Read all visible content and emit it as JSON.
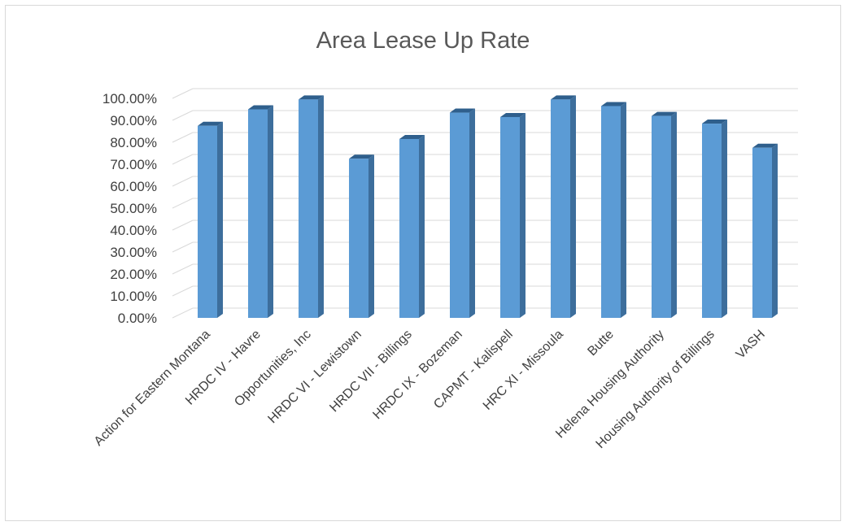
{
  "chart_data": {
    "type": "bar",
    "title": "Area Lease Up Rate",
    "categories": [
      "Action for Eastern Montana",
      "HRDC IV - Havre",
      "Opportunities, Inc",
      "HRDC VI - Lewistown",
      "HRDC VII - Billings",
      "HRDC IX - Bozeman",
      "CAPMT - Kalispell",
      "HRC XI - Missoula",
      "Butte",
      "Helena Housing Authority",
      "Housing Authority of Billings",
      "VASH"
    ],
    "series": [
      {
        "values": [
          0.875,
          0.95,
          0.995,
          0.725,
          0.815,
          0.935,
          0.915,
          0.995,
          0.965,
          0.92,
          0.885,
          0.775
        ]
      }
    ],
    "ylim": [
      0,
      1
    ],
    "yticks": [
      "0.00%",
      "10.00%",
      "20.00%",
      "30.00%",
      "40.00%",
      "50.00%",
      "60.00%",
      "70.00%",
      "80.00%",
      "90.00%",
      "100.00%"
    ],
    "grid": true,
    "style": "3d-column",
    "colors": {
      "front": "#5b9bd5",
      "side": "#3d6e9c",
      "top": "#2f5f8c",
      "grid": "#d9d9d9"
    }
  }
}
